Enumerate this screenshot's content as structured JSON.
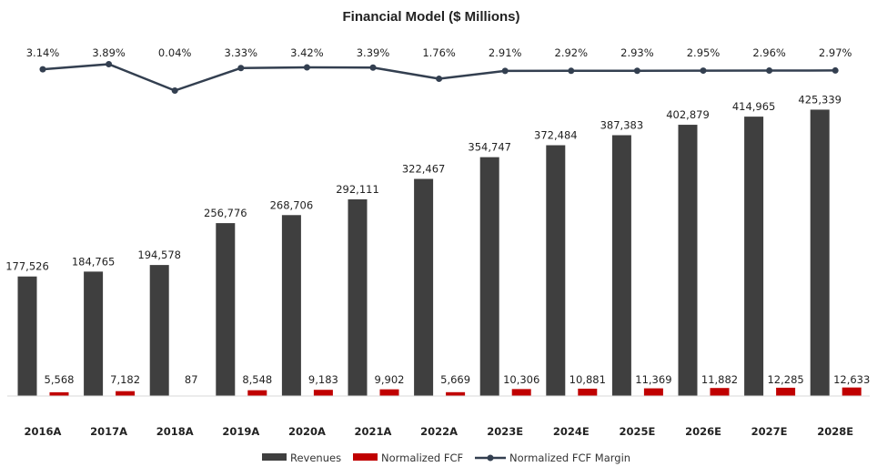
{
  "chart_data": {
    "type": "bar",
    "title": "Financial Model ($ Millions)",
    "categories": [
      "2016A",
      "2017A",
      "2018A",
      "2019A",
      "2020A",
      "2021A",
      "2022A",
      "2023E",
      "2024E",
      "2025E",
      "2026E",
      "2027E",
      "2028E"
    ],
    "series": [
      {
        "name": "Revenues",
        "type": "bar",
        "color": "#3f3f3f",
        "values": [
          177526,
          184765,
          194578,
          256776,
          268706,
          292111,
          322467,
          354747,
          372484,
          387383,
          402879,
          414965,
          425339
        ],
        "labels": [
          "177,526",
          "184,765",
          "194,578",
          "256,776",
          "268,706",
          "292,111",
          "322,467",
          "354,747",
          "372,484",
          "387,383",
          "402,879",
          "414,965",
          "425,339"
        ]
      },
      {
        "name": "Normalized FCF",
        "type": "bar",
        "color": "#c00000",
        "values": [
          5568,
          7182,
          87,
          8548,
          9183,
          9902,
          5669,
          10306,
          10881,
          11369,
          11882,
          12285,
          12633
        ],
        "labels": [
          "5,568",
          "7,182",
          "87",
          "8,548",
          "9,183",
          "9,902",
          "5,669",
          "10,306",
          "10,881",
          "11,369",
          "11,882",
          "12,285",
          "12,633"
        ]
      },
      {
        "name": "Normalized FCF Margin",
        "type": "line",
        "color": "#333f50",
        "values": [
          3.14,
          3.89,
          0.04,
          3.33,
          3.42,
          3.39,
          1.76,
          2.91,
          2.92,
          2.93,
          2.95,
          2.96,
          2.97
        ],
        "labels": [
          "3.14%",
          "3.89%",
          "0.04%",
          "3.33%",
          "3.42%",
          "3.39%",
          "1.76%",
          "2.91%",
          "2.92%",
          "2.93%",
          "2.95%",
          "2.96%",
          "2.97%"
        ]
      }
    ],
    "ylim": [
      0,
      430000
    ],
    "margin_ylim": [
      0,
      4
    ],
    "grid": false,
    "legend_position": "bottom"
  }
}
